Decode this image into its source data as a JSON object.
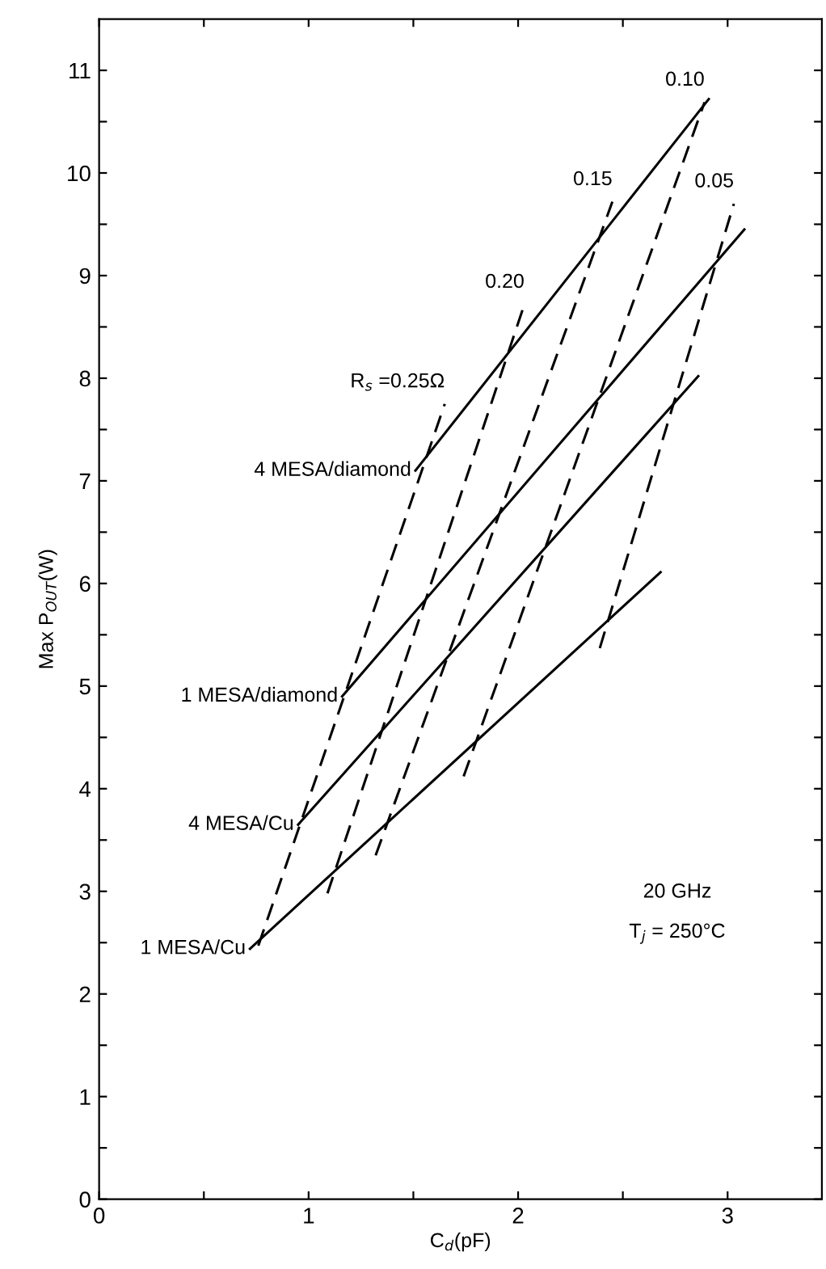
{
  "chart_data": {
    "type": "line",
    "xlabel": "C$_{d}$(pF)",
    "ylabel": "Max P$_{OUT}$(W)",
    "xlim": [
      0,
      3.45
    ],
    "ylim": [
      0,
      11.5
    ],
    "xticks": [
      0,
      {
        "value": 0.5,
        "label": null
      },
      1,
      {
        "value": 1.5,
        "label": null
      },
      2,
      {
        "value": 2.5,
        "label": null
      },
      3
    ],
    "yticks": [
      0,
      {
        "value": 0.5,
        "label": null
      },
      1,
      {
        "value": 1.5,
        "label": null
      },
      2,
      {
        "value": 2.5,
        "label": null
      },
      3,
      {
        "value": 3.5,
        "label": null
      },
      4,
      {
        "value": 4.5,
        "label": null
      },
      5,
      {
        "value": 5.5,
        "label": null
      },
      6,
      {
        "value": 6.5,
        "label": null
      },
      7,
      {
        "value": 7.5,
        "label": null
      },
      8,
      {
        "value": 8.5,
        "label": null
      },
      9,
      {
        "value": 9.5,
        "label": null
      },
      10,
      {
        "value": 10.5,
        "label": null
      },
      11
    ],
    "grid": false,
    "legend": false,
    "series": [
      {
        "name": "4 MESA/diamond",
        "color": "#000000",
        "line_style": "solid",
        "x": [
          1.51,
          2.91
        ],
        "values": [
          7.1,
          10.72
        ]
      },
      {
        "name": "1 MESA/diamond",
        "color": "#000000",
        "line_style": "solid",
        "x": [
          1.16,
          3.08
        ],
        "values": [
          4.9,
          9.45
        ]
      },
      {
        "name": "4 MESA/Cu",
        "color": "#000000",
        "line_style": "solid",
        "x": [
          0.95,
          2.86
        ],
        "values": [
          3.65,
          8.02
        ]
      },
      {
        "name": "1 MESA/Cu",
        "color": "#000000",
        "line_style": "solid",
        "x": [
          0.72,
          2.68
        ],
        "values": [
          2.44,
          6.11
        ]
      },
      {
        "name": "R$_{s}$ =0.25Ω",
        "color": "#000000",
        "line_style": "dashed",
        "x": [
          0.76,
          1.65
        ],
        "values": [
          2.47,
          7.75
        ]
      },
      {
        "name": "0.20",
        "color": "#000000",
        "line_style": "dashed",
        "x": [
          1.09,
          2.03
        ],
        "values": [
          2.98,
          8.72
        ]
      },
      {
        "name": "0.15",
        "color": "#000000",
        "line_style": "dashed",
        "x": [
          1.32,
          2.45
        ],
        "values": [
          3.35,
          9.72
        ]
      },
      {
        "name": "0.10",
        "color": "#000000",
        "line_style": "dashed",
        "x": [
          1.74,
          2.89
        ],
        "values": [
          4.12,
          10.69
        ]
      },
      {
        "name": "0.05",
        "color": "#000000",
        "line_style": "dashed",
        "x": [
          2.39,
          3.03
        ],
        "values": [
          5.37,
          9.7
        ]
      }
    ],
    "annotations": [
      "20 GHz",
      "T$_{j}$ = 250°C"
    ]
  }
}
